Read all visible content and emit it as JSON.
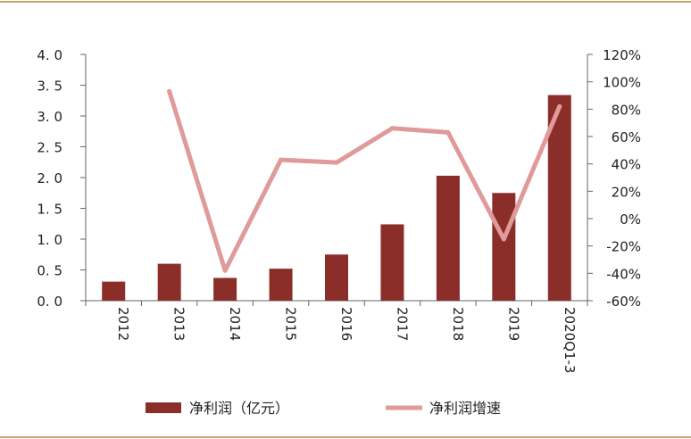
{
  "chart_data": {
    "type": "bar",
    "categories": [
      "2012",
      "2013",
      "2014",
      "2015",
      "2016",
      "2017",
      "2018",
      "2019",
      "2020Q1-3"
    ],
    "series": [
      {
        "name": "净利润（亿元）",
        "type": "bar",
        "axis": "left",
        "color": "#8b2e2a",
        "values": [
          0.31,
          0.6,
          0.37,
          0.52,
          0.75,
          1.24,
          2.03,
          1.75,
          3.34
        ]
      },
      {
        "name": "净利润增速",
        "type": "line",
        "axis": "right",
        "unit": "%",
        "color": "#e09a9a",
        "values": [
          null,
          93,
          -38,
          43,
          41,
          66,
          63,
          -15,
          82
        ]
      }
    ],
    "y_left": {
      "lim": [
        0,
        4
      ],
      "ticks": [
        0,
        0.5,
        1.0,
        1.5,
        2.0,
        2.5,
        3.0,
        3.5,
        4.0
      ],
      "tick_labels": [
        "0. 0",
        "0. 5",
        "1. 0",
        "1. 5",
        "2. 0",
        "2. 5",
        "3. 0",
        "3. 5",
        "4. 0"
      ]
    },
    "y_right": {
      "lim": [
        -60,
        120
      ],
      "ticks": [
        -60,
        -40,
        -20,
        0,
        20,
        40,
        60,
        80,
        100,
        120
      ],
      "tick_labels": [
        "-60%",
        "-40%",
        "-20%",
        "0%",
        "20%",
        "40%",
        "60%",
        "80%",
        "100%",
        "120%"
      ]
    },
    "title": "",
    "xlabel": "",
    "ylabel": "",
    "grid": false,
    "legend_position": "bottom"
  }
}
